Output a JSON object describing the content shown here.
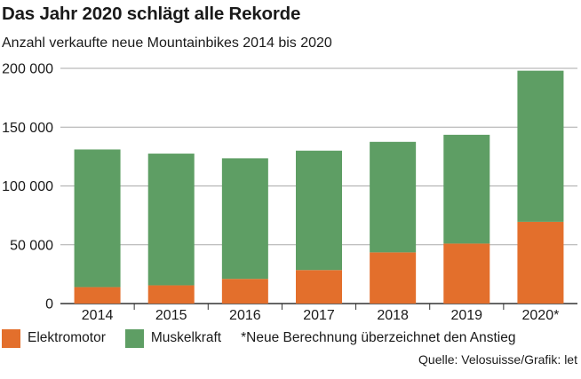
{
  "chart_data": {
    "type": "bar",
    "stacked": true,
    "title": "Das Jahr 2020 schlägt alle Rekorde",
    "subtitle": "Anzahl verkaufte neue Mountainbikes 2014 bis 2020",
    "categories": [
      "2014",
      "2015",
      "2016",
      "2017",
      "2018",
      "2019",
      "2020*"
    ],
    "series": [
      {
        "name": "Elektromotor",
        "color": "#e36f2c",
        "values": [
          14000,
          15500,
          21000,
          28500,
          43500,
          51000,
          69500
        ]
      },
      {
        "name": "Muskelkraft",
        "color": "#5e9e64",
        "values": [
          117000,
          112000,
          102500,
          101500,
          94000,
          92500,
          128500
        ]
      }
    ],
    "ylim": [
      0,
      200000
    ],
    "yticks": [
      0,
      50000,
      100000,
      150000,
      200000
    ],
    "ytick_labels": [
      "0",
      "50 000",
      "100 000",
      "150 000",
      "200 000"
    ],
    "grid": "horizontal",
    "note": "*Neue Berechnung überzeichnet den Anstieg",
    "source": "Quelle: Velosuisse/Grafik: let"
  }
}
